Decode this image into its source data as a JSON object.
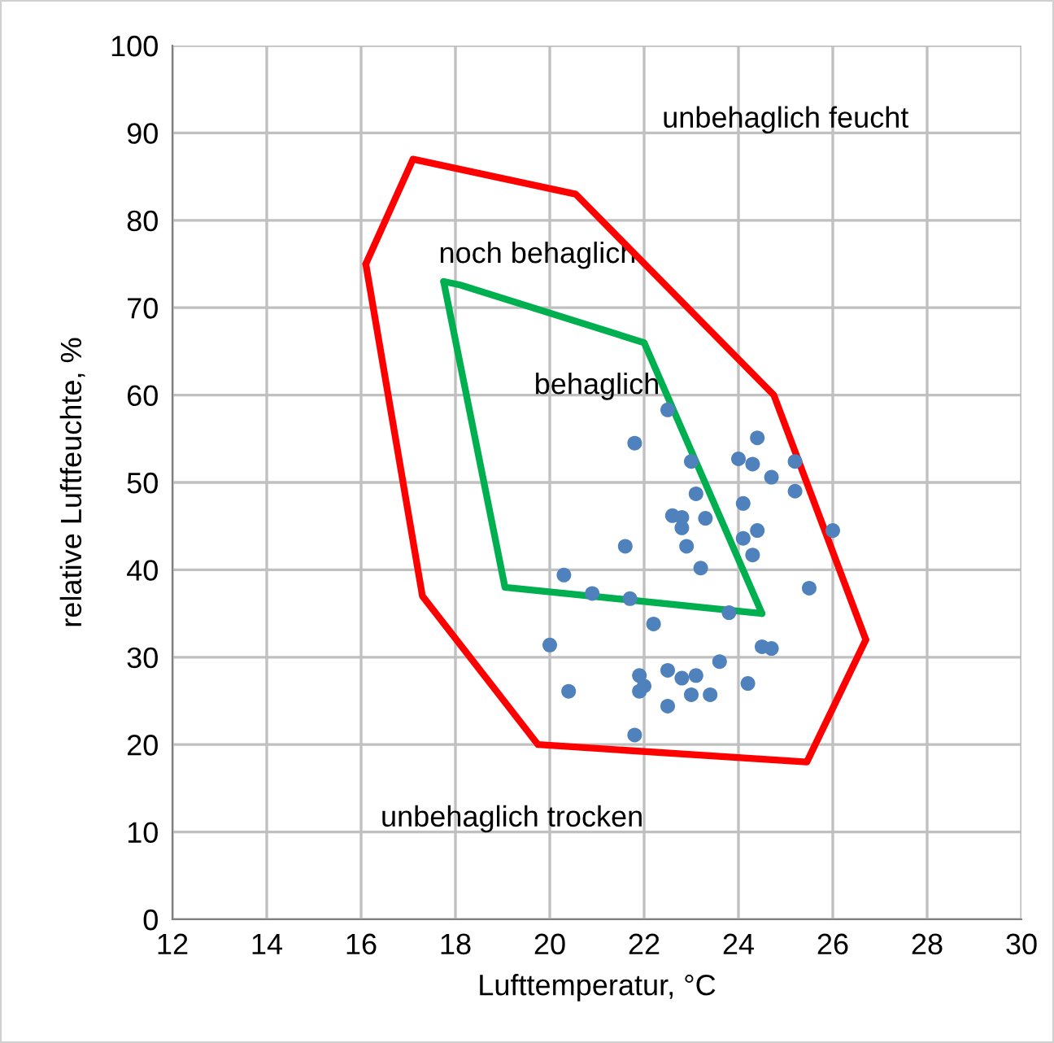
{
  "chart_data": {
    "type": "scatter",
    "xlabel": "Lufttemperatur, °C",
    "ylabel": "relative Luftfeuchte, %",
    "xlim": [
      12,
      30
    ],
    "xticks": [
      12,
      14,
      16,
      18,
      20,
      22,
      24,
      26,
      28,
      30
    ],
    "ylim": [
      0,
      100
    ],
    "yticks": [
      0,
      10,
      20,
      30,
      40,
      50,
      60,
      70,
      80,
      90,
      100
    ],
    "grid": true,
    "series": [
      {
        "type": "line",
        "color": "#ff0000",
        "marker": "none",
        "x": [
          16.1,
          17.1,
          20.55,
          24.75,
          26.7
        ],
        "values": [
          75,
          87,
          83,
          60,
          32
        ]
      },
      {
        "type": "line",
        "color": "#ff0000",
        "marker": "none",
        "x": [
          16.1,
          17.3,
          19.75,
          25.45,
          26.7
        ],
        "values": [
          75,
          37,
          20,
          18,
          32
        ]
      },
      {
        "type": "line",
        "color": "#00b050",
        "marker": "none",
        "x": [
          17.75,
          18.1,
          22.0,
          24.5
        ],
        "values": [
          73,
          72.6,
          66,
          35
        ]
      },
      {
        "type": "line",
        "color": "#00b050",
        "marker": "none",
        "x": [
          17.75,
          19.05,
          24.5
        ],
        "values": [
          73,
          38,
          35
        ]
      },
      {
        "color": "#4f81bd",
        "marker": "circle",
        "x": [
          22.5,
          21.8,
          24.4,
          23.0,
          24.0,
          24.3,
          25.2,
          24.7,
          25.2,
          23.1,
          24.1,
          22.6,
          22.8,
          22.8,
          23.3,
          24.1,
          24.4,
          26.0,
          21.6,
          22.9,
          24.3,
          23.2,
          20.3,
          25.5,
          20.9,
          21.7,
          23.8,
          22.2,
          20.0,
          24.5,
          24.7,
          23.6,
          21.9,
          22.5,
          22.8,
          23.1,
          20.4,
          22.0,
          21.9,
          23.0,
          23.4,
          24.2,
          22.5,
          21.8
        ],
        "values": [
          58.3,
          54.5,
          55.1,
          52.4,
          52.7,
          52.1,
          52.4,
          50.6,
          49.0,
          48.7,
          47.6,
          46.2,
          46.0,
          44.8,
          45.9,
          43.6,
          44.5,
          44.5,
          42.7,
          42.7,
          41.7,
          40.2,
          39.4,
          37.9,
          37.3,
          36.7,
          35.1,
          33.8,
          31.4,
          31.2,
          31.0,
          29.5,
          27.9,
          28.5,
          27.6,
          27.9,
          26.1,
          26.7,
          26.1,
          25.7,
          25.7,
          27.0,
          24.4,
          21.1
        ]
      }
    ],
    "annotations": [
      "unbehaglich feucht",
      "noch behaglich",
      "behaglich",
      "unbehaglich trocken"
    ]
  }
}
